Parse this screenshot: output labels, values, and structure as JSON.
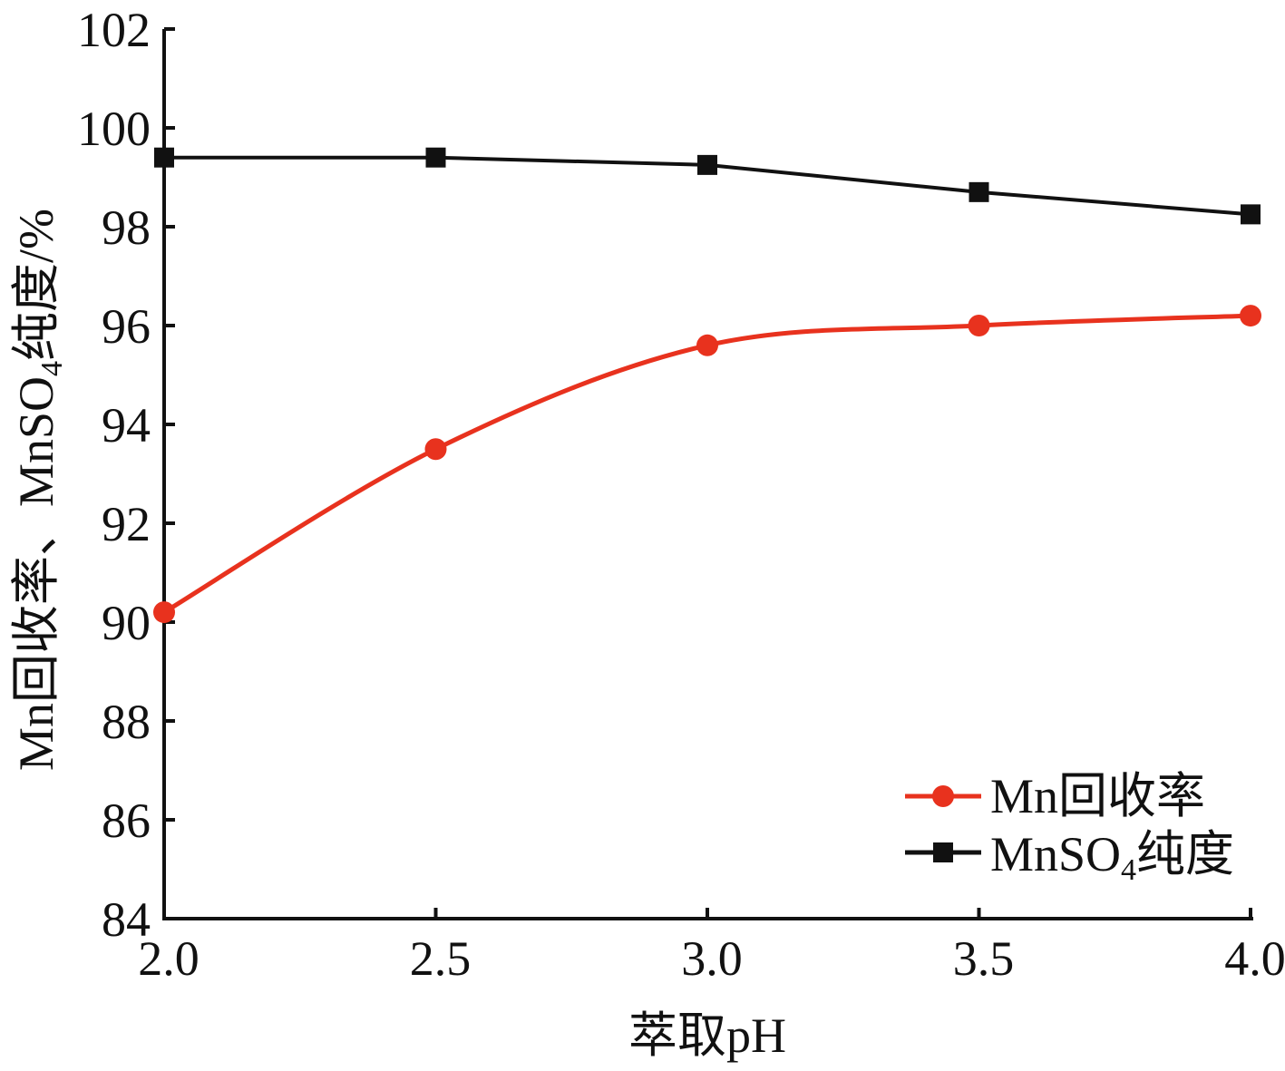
{
  "chart_data": {
    "type": "line",
    "x": [
      2.0,
      2.5,
      3.0,
      3.5,
      4.0
    ],
    "xticks": [
      "2.0",
      "2.5",
      "3.0",
      "3.5",
      "4.0"
    ],
    "xlim": [
      2.0,
      4.0
    ],
    "yticks": [
      "84",
      "86",
      "88",
      "90",
      "92",
      "94",
      "96",
      "98",
      "100",
      "102"
    ],
    "ylim": [
      84,
      102
    ],
    "xlabel": "萃取pH",
    "ylabel": "Mn回收率、MnSO4纯度/%",
    "grid": false,
    "legend_position": "bottom-right",
    "series": [
      {
        "name": "Mn回收率",
        "values": [
          90.2,
          93.5,
          95.6,
          96.0,
          96.2
        ],
        "color": "#e8321e",
        "marker": "circle",
        "smooth": true
      },
      {
        "name": "MnSO4纯度",
        "values": [
          99.4,
          99.4,
          99.25,
          98.7,
          98.25
        ],
        "color": "#111111",
        "marker": "square",
        "smooth": false
      }
    ]
  }
}
